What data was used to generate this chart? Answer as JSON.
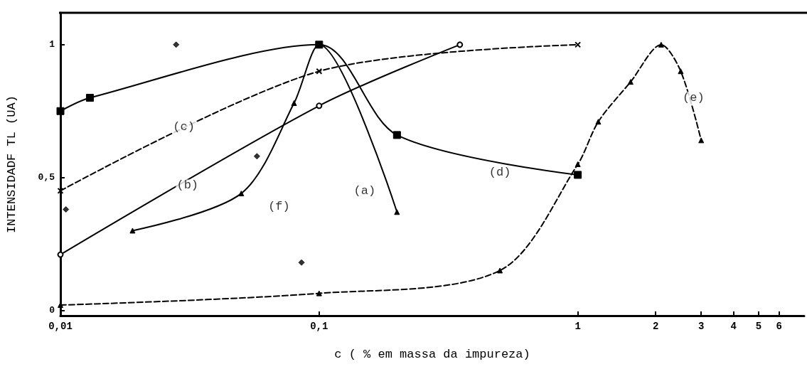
{
  "chart_data": {
    "type": "line",
    "xlabel": "c ( % em massa da impureza)",
    "ylabel": "INTENSIDADF TL (UA)",
    "log": "x",
    "xlim": [
      0.01,
      7.5
    ],
    "xticks": [
      {
        "value": 0.01,
        "label": "0,01"
      },
      {
        "value": 0.1,
        "label": "0,1"
      },
      1,
      2,
      3,
      4,
      5,
      6
    ],
    "ylim": [
      -0.02,
      1.12
    ],
    "yticks": [
      0,
      {
        "value": 0.5,
        "label": "0,5"
      },
      1
    ],
    "series": [
      {
        "color": "#000000",
        "marker": "triangle",
        "line_style": "solid",
        "x": [
          0.019,
          0.05,
          0.08,
          0.1,
          0.2
        ],
        "values": [
          0.3,
          0.44,
          0.78,
          1.0,
          0.37
        ]
      },
      {
        "color": "#000000",
        "marker": "circle",
        "line_style": "solid",
        "x": [
          0.01,
          0.1,
          0.35
        ],
        "values": [
          0.21,
          0.77,
          1.0
        ]
      },
      {
        "color": "#000000",
        "marker": "cross",
        "line_style": "dashed",
        "x": [
          0.01,
          0.1,
          1
        ],
        "values": [
          0.45,
          0.9,
          1.0
        ]
      },
      {
        "color": "#000000",
        "marker": "square",
        "line_style": "solid",
        "x": [
          0.01,
          0.013,
          0.1,
          0.2,
          1
        ],
        "values": [
          0.75,
          0.8,
          1.0,
          0.66,
          0.51
        ]
      },
      {
        "color": "#000000",
        "marker": "triangle",
        "line_style": "dashed",
        "x": [
          0.01,
          0.1,
          0.5,
          1,
          1.2,
          1.6,
          2.1,
          2.5,
          3
        ],
        "values": [
          0.02,
          0.064,
          0.15,
          0.55,
          0.71,
          0.86,
          1.0,
          0.9,
          0.64
        ]
      },
      {
        "type": "scatter",
        "color": "#000000",
        "marker": "diamond",
        "x": [
          0.0105,
          0.028,
          0.0575,
          0.0855
        ],
        "values": [
          0.38,
          1.0,
          0.58,
          0.18
        ]
      }
    ],
    "annotations": [
      {
        "text": "(a)",
        "x": 0.15,
        "y": 0.45
      },
      {
        "text": "(b)",
        "x": 0.031,
        "y": 0.47
      },
      {
        "text": "(c)",
        "x": 0.03,
        "y": 0.69
      },
      {
        "text": "(d)",
        "x": 0.5,
        "y": 0.52
      },
      {
        "text": "(e)",
        "x": 2.8,
        "y": 0.8
      },
      {
        "text": "(f)",
        "x": 0.07,
        "y": 0.39
      }
    ]
  }
}
